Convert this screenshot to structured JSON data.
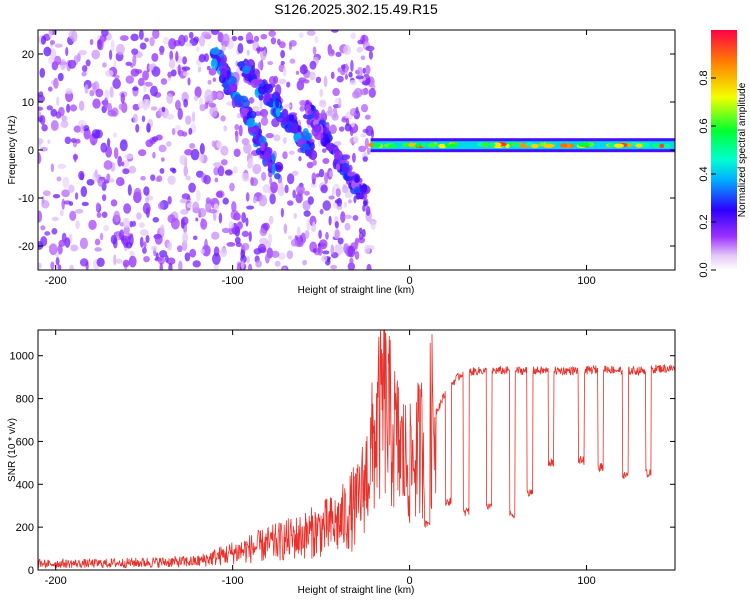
{
  "title": "S126.2025.302.15.49.R15",
  "chart_data": [
    {
      "type": "heatmap",
      "title": "S126.2025.302.15.49.R15",
      "xlabel": "Height of straight line (km)",
      "ylabel": "Frequency (Hz)",
      "xlim": [
        -210,
        150
      ],
      "ylim": [
        -25,
        25
      ],
      "x_ticks": [
        -200,
        -100,
        0,
        100
      ],
      "y_ticks": [
        -20,
        -10,
        0,
        10,
        20
      ],
      "colorbar": {
        "label": "Normalized spectral amplitude",
        "range": [
          0,
          1
        ],
        "ticks": [
          0.0,
          0.2,
          0.4,
          0.6,
          0.8
        ]
      },
      "features": [
        {
          "name": "scattered noise",
          "x_range": [
            -210,
            -20
          ],
          "freq_range": [
            -25,
            25
          ],
          "amplitude": 0.1
        },
        {
          "name": "descending streak 1",
          "x": [
            -110,
            -75
          ],
          "freq": [
            20,
            -5
          ],
          "amplitude": 0.15
        },
        {
          "name": "descending streak 2",
          "x": [
            -95,
            -55
          ],
          "freq": [
            18,
            0
          ],
          "amplitude": 0.15
        },
        {
          "name": "descending streak 3",
          "x": [
            -60,
            -25
          ],
          "freq": [
            10,
            -10
          ],
          "amplitude": 0.12
        },
        {
          "name": "narrow spectral line",
          "x_range": [
            -22,
            150
          ],
          "freq": 1.0,
          "amplitude": 0.95
        }
      ]
    },
    {
      "type": "line",
      "xlabel": "Height of straight line (km)",
      "ylabel": "SNR (10 * v/v)",
      "xlim": [
        -210,
        150
      ],
      "ylim": [
        0,
        1120
      ],
      "x_ticks": [
        -200,
        -100,
        0,
        100
      ],
      "y_ticks": [
        0,
        200,
        400,
        600,
        800,
        1000
      ],
      "color": "#e8312a",
      "series": [
        {
          "name": "SNR",
          "x": [
            -210,
            -180,
            -150,
            -120,
            -110,
            -100,
            -80,
            -60,
            -40,
            -30,
            -25,
            -20,
            -15,
            -10,
            -5,
            0,
            5,
            10,
            15,
            20,
            25,
            30,
            40,
            50,
            60,
            70,
            80,
            90,
            100,
            110,
            120,
            130,
            140,
            150
          ],
          "y": [
            30,
            30,
            35,
            40,
            60,
            80,
            120,
            160,
            220,
            300,
            420,
            600,
            800,
            650,
            550,
            480,
            560,
            640,
            740,
            820,
            880,
            920,
            930,
            930,
            930,
            930,
            930,
            930,
            930,
            940,
            930,
            930,
            940,
            940
          ]
        }
      ],
      "dips": [
        {
          "x": -205,
          "y": 10
        },
        {
          "x": 10,
          "y": 200
        },
        {
          "x": 22,
          "y": 300
        },
        {
          "x": 32,
          "y": 250
        },
        {
          "x": 45,
          "y": 270
        },
        {
          "x": 58,
          "y": 240
        },
        {
          "x": 68,
          "y": 340
        },
        {
          "x": 80,
          "y": 480
        },
        {
          "x": 97,
          "y": 490
        },
        {
          "x": 108,
          "y": 460
        },
        {
          "x": 122,
          "y": 420
        },
        {
          "x": 135,
          "y": 430
        }
      ]
    }
  ]
}
